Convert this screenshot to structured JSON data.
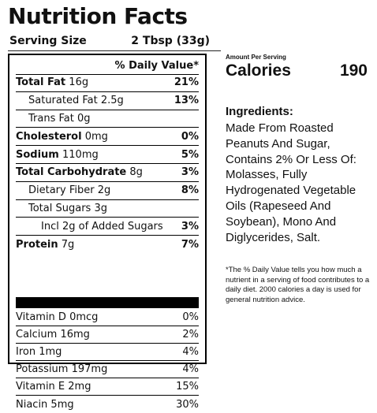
{
  "header": {
    "title": "Nutrition Facts",
    "serving_label": "Serving Size",
    "serving_value": "2 Tbsp (33g)"
  },
  "panel": {
    "dv_header": "% Daily Value*",
    "rows": [
      {
        "label": "Total Fat",
        "amount": "16g",
        "pct": "21%"
      },
      {
        "label": "Saturated Fat 2.5g",
        "pct": "13%"
      },
      {
        "label": "Trans Fat 0g",
        "pct": ""
      },
      {
        "label": "Cholesterol",
        "amount": "0mg",
        "pct": "0%"
      },
      {
        "label": "Sodium",
        "amount": "110mg",
        "pct": "5%"
      },
      {
        "label": "Total Carbohydrate",
        "amount": "8g",
        "pct": "3%"
      },
      {
        "label": "Dietary Fiber 2g",
        "pct": "8%"
      },
      {
        "label": "Total Sugars 3g",
        "pct": ""
      },
      {
        "label": "Incl 2g of Added Sugars",
        "pct": "3%"
      },
      {
        "label": "Protein",
        "amount": "7g",
        "pct": "7%"
      }
    ],
    "vitamins": [
      {
        "label": "Vitamin D 0mcg",
        "pct": "0%"
      },
      {
        "label": "Calcium 16mg",
        "pct": "2%"
      },
      {
        "label": "Iron 1mg",
        "pct": "4%"
      },
      {
        "label": "Potassium 197mg",
        "pct": "4%"
      },
      {
        "label": "Vitamin E 2mg",
        "pct": "15%"
      },
      {
        "label": "Niacin 5mg",
        "pct": "30%"
      }
    ]
  },
  "side": {
    "amount_per_serving": "Amount Per Serving",
    "calories_label": "Calories",
    "calories_value": "190",
    "ingredients_title": "Ingredients:",
    "ingredients_text": "Made From Roasted Peanuts And Sugar, Contains 2% Or Less Of: Molasses, Fully Hydrogenated Vegetable Oils (Rapeseed And Soybean), Mono And Diglycerides, Salt.",
    "footnote": "*The % Daily Value tells you how much a nutrient in a serving of food contributes to a daily diet. 2000 calories a day is used for general nutrition advice."
  }
}
